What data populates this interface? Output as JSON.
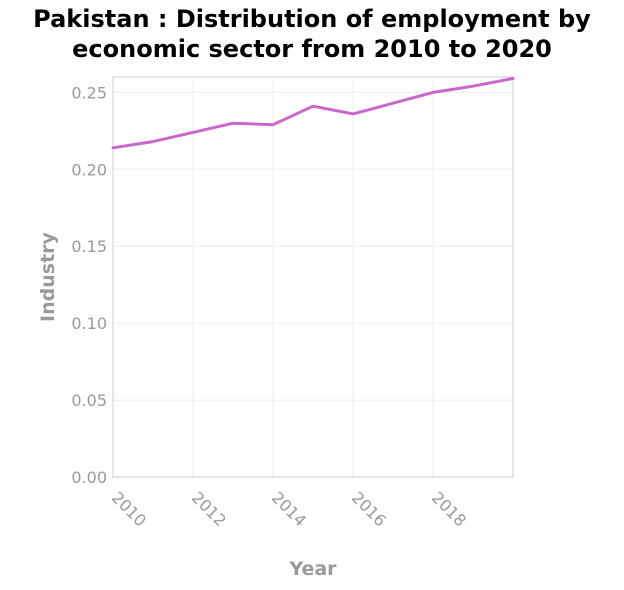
{
  "chart_data": {
    "type": "line",
    "title_lines": [
      "Pakistan : Distribution of employment by",
      "economic sector from 2010 to 2020"
    ],
    "xlabel": "Year",
    "ylabel": "Industry",
    "xlim": [
      2010,
      2020
    ],
    "ylim": [
      0,
      0.26
    ],
    "x_ticks": [
      2010,
      2012,
      2014,
      2016,
      2018
    ],
    "y_ticks": [
      "0.00",
      "0.05",
      "0.10",
      "0.15",
      "0.20",
      "0.25"
    ],
    "grid": true,
    "series": [
      {
        "color": "#cc66cc",
        "x": [
          2010,
          2011,
          2012,
          2013,
          2014,
          2015,
          2016,
          2017,
          2018,
          2019,
          2020
        ],
        "y": [
          0.214,
          0.218,
          0.224,
          0.23,
          0.229,
          0.241,
          0.236,
          0.243,
          0.25,
          0.254,
          0.259
        ]
      }
    ]
  }
}
